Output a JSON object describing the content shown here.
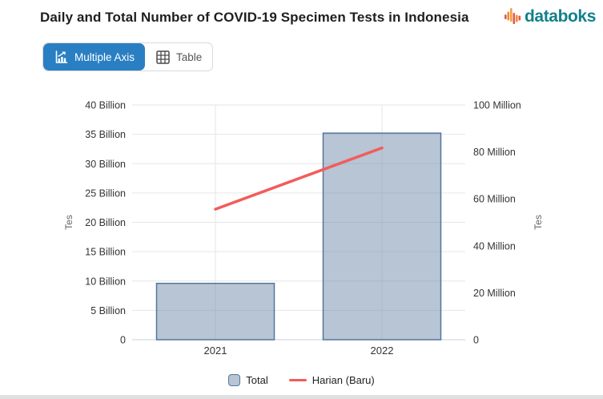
{
  "header": {
    "title": "Daily and Total Number of COVID-19 Specimen Tests in Indonesia"
  },
  "brand": {
    "name": "databoks",
    "text_color": "#12808a",
    "logo_red": "#e2574c",
    "logo_orange": "#ef8a3a"
  },
  "toolbar": {
    "multiple_axis_label": "Multiple Axis",
    "table_label": "Table",
    "active_tab": "Multiple Axis",
    "accent_color": "#2a7fc3"
  },
  "chart_data": {
    "type": "bar+line dual-axis",
    "categories": [
      "2021",
      "2022"
    ],
    "series": [
      {
        "name": "Total",
        "type": "bar",
        "axis": "left",
        "unit": "Billion",
        "values": [
          9.6,
          35.2
        ],
        "color_fill": "#708cab",
        "fill_opacity": 0.5,
        "color_border": "#54769c"
      },
      {
        "name": "Harian (Baru)",
        "type": "line",
        "axis": "right",
        "unit": "Million",
        "values": [
          55.6,
          81.7
        ],
        "color": "#f45b5b"
      }
    ],
    "y_left": {
      "title": "Tes",
      "min": 0,
      "max": 40,
      "step": 5,
      "tick_labels": [
        "0",
        "5 Billion",
        "10 Billion",
        "15 Billion",
        "20 Billion",
        "25 Billion",
        "30 Billion",
        "35 Billion",
        "40 Billion"
      ]
    },
    "y_right": {
      "title": "Tes",
      "min": 0,
      "max": 100,
      "step": 20,
      "tick_labels": [
        "0",
        "20 Million",
        "40 Million",
        "60 Million",
        "80 Million",
        "100 Million"
      ]
    },
    "grid": true,
    "legend_position": "bottom",
    "gridline_color": "#e6e6e6",
    "baseline_color": "#c8d0dc"
  }
}
